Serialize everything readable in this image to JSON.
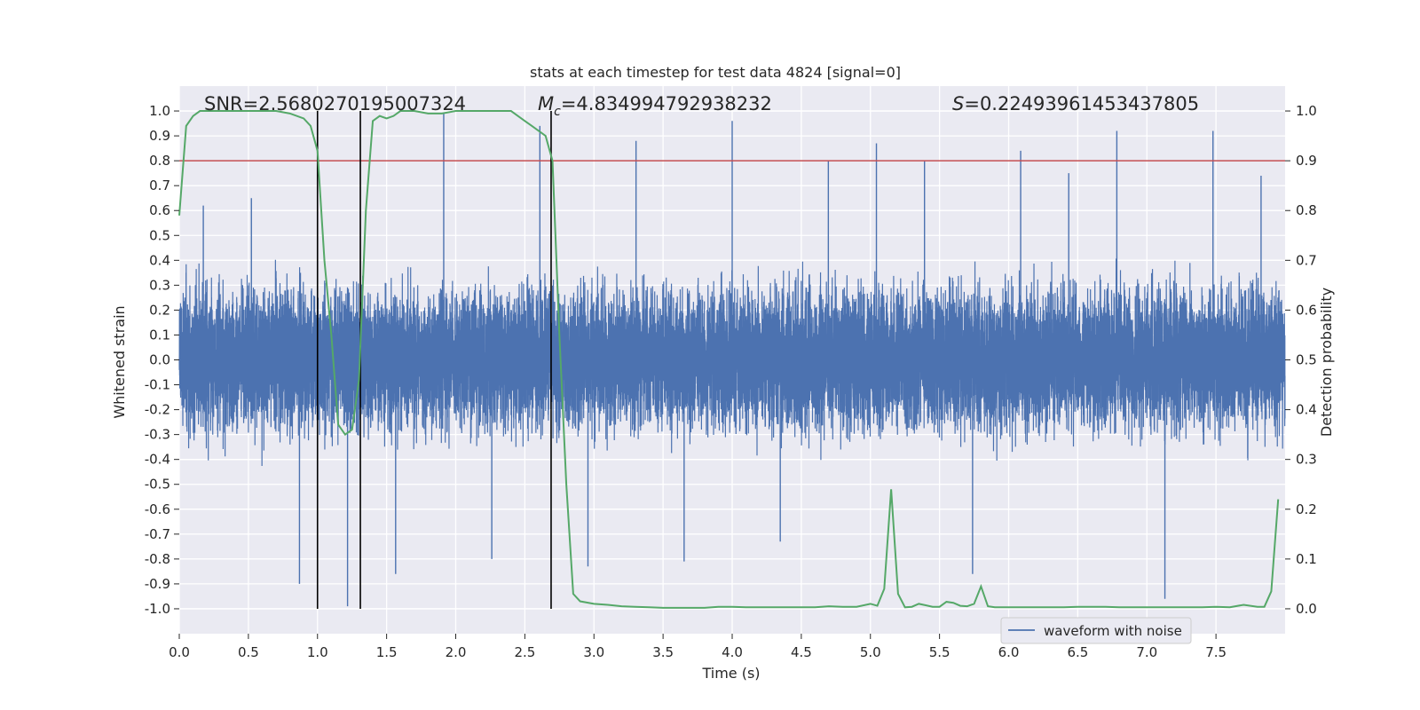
{
  "chart_data": {
    "type": "line",
    "title": "stats at each timestep for test data 4824 [signal=0]",
    "xlabel": "Time (s)",
    "ylabel_left": "Whitened strain",
    "ylabel_right": "Detection probability",
    "xlim": [
      0.0,
      8.0
    ],
    "ylim_left": [
      -1.1,
      1.1
    ],
    "ylim_right": [
      -0.05,
      1.05
    ],
    "grid": true,
    "x_ticks": [
      "0.0",
      "0.5",
      "1.0",
      "1.5",
      "2.0",
      "2.5",
      "3.0",
      "3.5",
      "4.0",
      "4.5",
      "5.0",
      "5.5",
      "6.0",
      "6.5",
      "7.0",
      "7.5"
    ],
    "y_left_ticks": [
      "1.0",
      "0.9",
      "0.8",
      "0.7",
      "0.6",
      "0.5",
      "0.4",
      "0.3",
      "0.2",
      "0.1",
      "0.0",
      "-0.1",
      "-0.2",
      "-0.3",
      "-0.4",
      "-0.5",
      "-0.6",
      "-0.7",
      "-0.8",
      "-0.9",
      "-1.0"
    ],
    "y_right_ticks": [
      "1.0",
      "0.9",
      "0.8",
      "0.7",
      "0.6",
      "0.5",
      "0.4",
      "0.3",
      "0.2",
      "0.1",
      "0.0"
    ],
    "annotations": {
      "snr": "SNR=2.5680270195007324",
      "mc_symbol": "M",
      "mc_sub": "c",
      "mc_value": "=4.834994792938232",
      "s_symbol": "S",
      "s_value": "=0.22493961453437805"
    },
    "threshold": {
      "value": 0.9,
      "axis": "right",
      "color": "#c44e52"
    },
    "vertical_lines": {
      "x": [
        1.0,
        1.31,
        2.69
      ],
      "ymin": -1.0,
      "ymax": 1.0,
      "color": "#000000"
    },
    "legend": {
      "label": "waveform with noise",
      "location": "lower-right"
    },
    "waveform": {
      "name": "waveform with noise",
      "color": "#4c72b0",
      "sample_rate_hz": 2048,
      "duration_s": 8.0,
      "peak_envelope": [
        0.62,
        0.65,
        -0.9,
        -0.99,
        -0.86,
        0.99,
        -0.8,
        0.94,
        -0.83,
        0.88,
        -0.81,
        0.96,
        -0.73,
        0.8,
        0.87,
        0.8,
        -0.86,
        0.84,
        0.75,
        0.92,
        -0.96,
        0.92,
        0.74
      ]
    },
    "series": [
      {
        "name": "detection probability",
        "axis": "right",
        "color": "#55a868",
        "x": [
          0.0,
          0.05,
          0.1,
          0.15,
          0.2,
          0.3,
          0.4,
          0.5,
          0.6,
          0.7,
          0.8,
          0.9,
          0.95,
          1.0,
          1.05,
          1.1,
          1.15,
          1.2,
          1.25,
          1.3,
          1.35,
          1.4,
          1.45,
          1.5,
          1.55,
          1.6,
          1.7,
          1.8,
          1.9,
          2.0,
          2.1,
          2.2,
          2.3,
          2.4,
          2.45,
          2.5,
          2.55,
          2.6,
          2.65,
          2.7,
          2.75,
          2.8,
          2.85,
          2.9,
          3.0,
          3.1,
          3.2,
          3.3,
          3.4,
          3.5,
          3.6,
          3.7,
          3.8,
          3.9,
          4.0,
          4.1,
          4.2,
          4.3,
          4.4,
          4.5,
          4.6,
          4.7,
          4.8,
          4.9,
          5.0,
          5.05,
          5.1,
          5.15,
          5.2,
          5.25,
          5.3,
          5.35,
          5.4,
          5.45,
          5.5,
          5.55,
          5.6,
          5.65,
          5.7,
          5.75,
          5.8,
          5.85,
          5.9,
          5.95,
          6.0,
          6.05,
          6.1,
          6.2,
          6.3,
          6.4,
          6.5,
          6.6,
          6.7,
          6.8,
          6.9,
          7.0,
          7.1,
          7.2,
          7.3,
          7.4,
          7.5,
          7.6,
          7.7,
          7.8,
          7.85,
          7.9,
          7.95
        ],
        "values": [
          0.79,
          0.97,
          0.99,
          1.0,
          1.0,
          1.0,
          1.0,
          1.0,
          1.0,
          1.0,
          0.995,
          0.985,
          0.97,
          0.92,
          0.7,
          0.55,
          0.37,
          0.35,
          0.36,
          0.46,
          0.8,
          0.98,
          0.99,
          0.985,
          0.99,
          1.0,
          1.0,
          0.995,
          0.995,
          1.0,
          1.0,
          1.0,
          1.0,
          1.0,
          0.99,
          0.98,
          0.97,
          0.96,
          0.95,
          0.9,
          0.55,
          0.25,
          0.03,
          0.015,
          0.01,
          0.008,
          0.005,
          0.004,
          0.003,
          0.002,
          0.002,
          0.002,
          0.002,
          0.004,
          0.004,
          0.003,
          0.003,
          0.003,
          0.003,
          0.003,
          0.003,
          0.005,
          0.004,
          0.004,
          0.01,
          0.006,
          0.04,
          0.24,
          0.03,
          0.003,
          0.004,
          0.01,
          0.007,
          0.004,
          0.004,
          0.014,
          0.012,
          0.006,
          0.005,
          0.01,
          0.045,
          0.005,
          0.003,
          0.003,
          0.003,
          0.003,
          0.003,
          0.003,
          0.003,
          0.003,
          0.004,
          0.004,
          0.004,
          0.003,
          0.003,
          0.003,
          0.003,
          0.003,
          0.003,
          0.003,
          0.004,
          0.003,
          0.008,
          0.004,
          0.004,
          0.035,
          0.22
        ]
      }
    ]
  }
}
